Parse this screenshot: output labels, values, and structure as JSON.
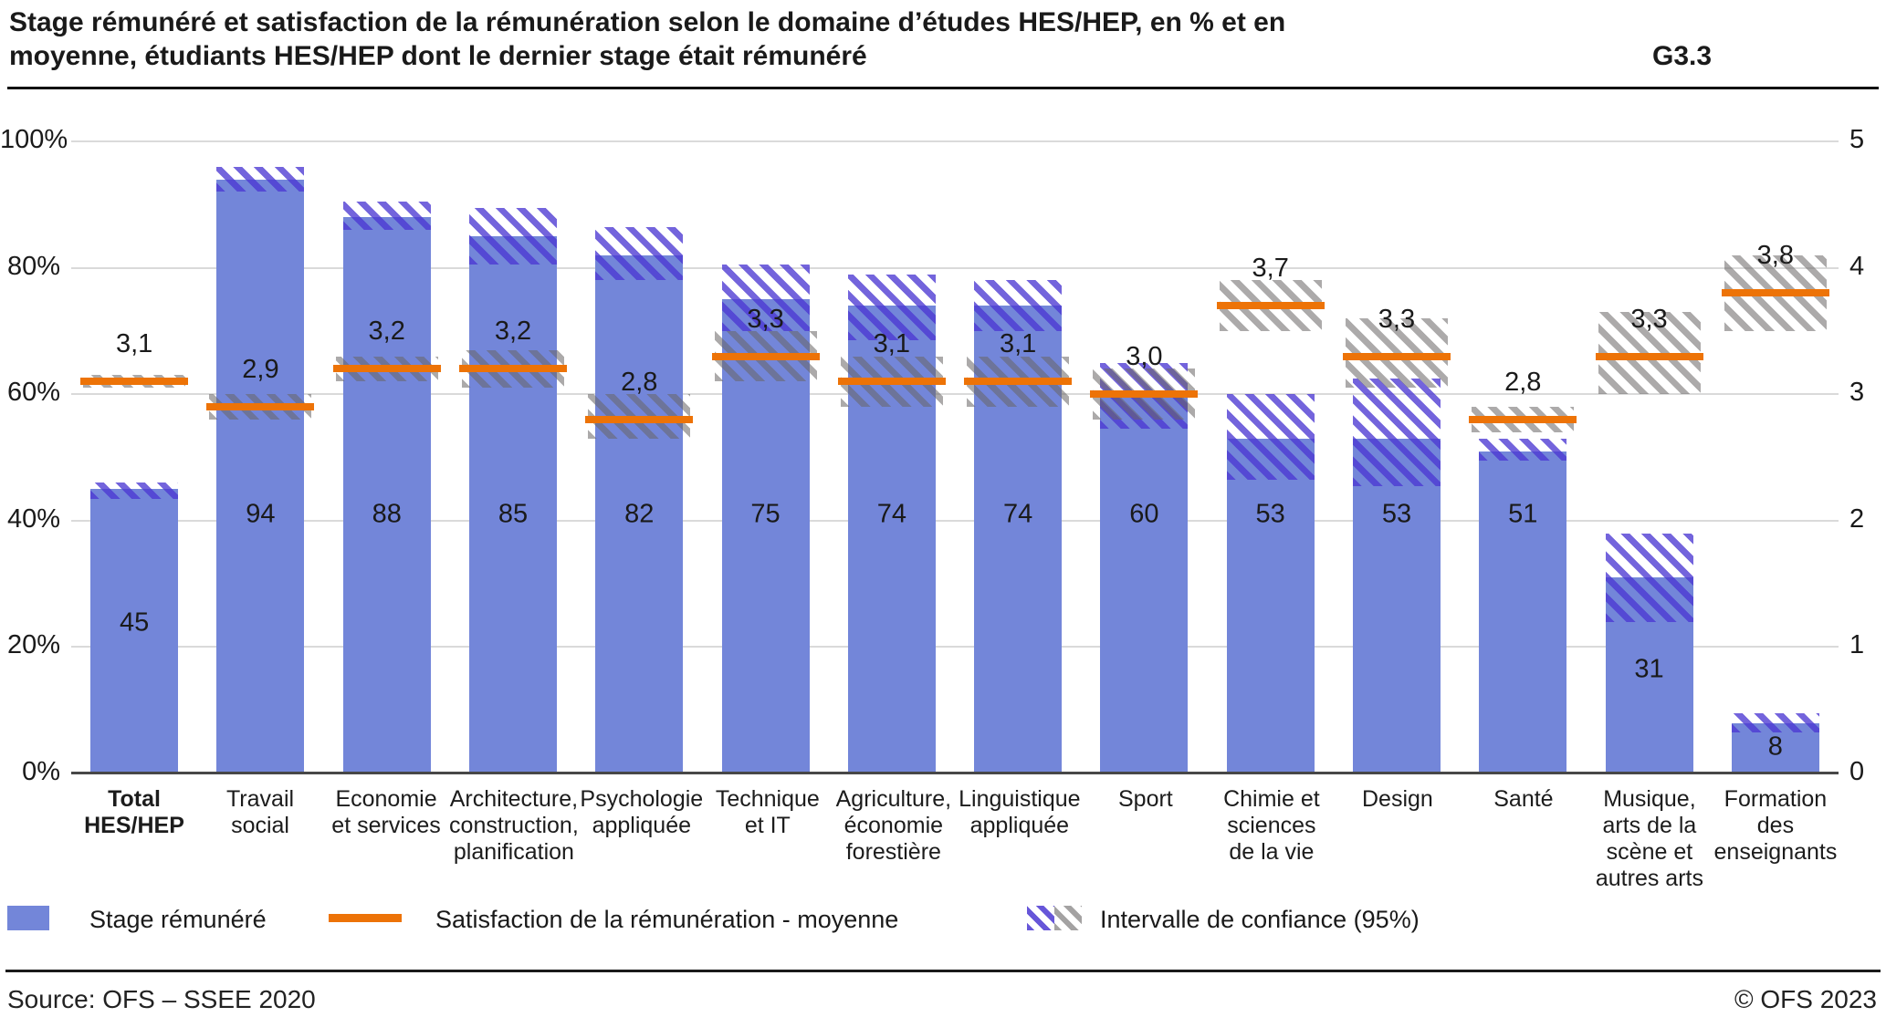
{
  "title": {
    "text": "Stage rémunéré et satisfaction de la rémunération selon le domaine d’études HES/HEP, en % et en\nmoyenne, étudiants HES/HEP dont le dernier stage était rémunéré",
    "code": "G3.3"
  },
  "chart_data": {
    "type": "bar",
    "title": "Stage rémunéré et satisfaction de la rémunération selon le domaine d’études HES/HEP, en % et en moyenne, étudiants HES/HEP dont le dernier stage était rémunéré",
    "categories": [
      "Total\nHES/HEP",
      "Travail\nsocial",
      "Economie\net services",
      "Architecture,\nconstruction,\nplanification",
      "Psychologie\nappliquée",
      "Technique\net IT",
      "Agriculture,\néconomie\nforestière",
      "Linguistique\nappliquée",
      "Sport",
      "Chimie et\nsciences\nde la vie",
      "Design",
      "Santé",
      "Musique,\narts de la\nscène et\nautres arts",
      "Formation\ndes\nenseignants"
    ],
    "bold_category_index": 0,
    "series": [
      {
        "name": "Stage rémunéré",
        "unit": "%",
        "axis": "left",
        "values": [
          45,
          94,
          88,
          85,
          82,
          75,
          74,
          74,
          60,
          53,
          53,
          51,
          31,
          8
        ],
        "ci_low": [
          43.5,
          92,
          86,
          80.5,
          78,
          70,
          68.5,
          70,
          54.5,
          46.5,
          45.5,
          49.5,
          24,
          6.5
        ],
        "ci_high": [
          46,
          96,
          90.5,
          89.5,
          86.5,
          80.5,
          79,
          78,
          65,
          60,
          62.5,
          53,
          38,
          9.5
        ]
      },
      {
        "name": "Satisfaction de la rémunération - moyenne",
        "unit": "moyenne (échelle 0–5)",
        "axis": "right",
        "values": [
          3.1,
          2.9,
          3.2,
          3.2,
          2.8,
          3.3,
          3.1,
          3.1,
          3.0,
          3.7,
          3.3,
          2.8,
          3.3,
          3.8
        ],
        "labels": [
          "3,1",
          "2,9",
          "3,2",
          "3,2",
          "2,8",
          "3,3",
          "3,1",
          "3,1",
          "3,0",
          "3,7",
          "3,3",
          "2,8",
          "3,3",
          "3,8"
        ],
        "ci_low": [
          3.05,
          2.8,
          3.1,
          3.05,
          2.65,
          3.1,
          2.9,
          2.9,
          2.8,
          3.5,
          3.05,
          2.7,
          3.0,
          3.5
        ],
        "ci_high": [
          3.15,
          3.0,
          3.3,
          3.35,
          3.0,
          3.5,
          3.3,
          3.3,
          3.2,
          3.9,
          3.6,
          2.9,
          3.65,
          4.1
        ]
      }
    ],
    "left_axis": {
      "label": "",
      "min": 0,
      "max": 100,
      "ticks": [
        "0%",
        "20%",
        "40%",
        "60%",
        "80%",
        "100%"
      ]
    },
    "right_axis": {
      "label": "",
      "min": 0,
      "max": 5,
      "ticks": [
        "0",
        "1",
        "2",
        "3",
        "4",
        "5"
      ]
    },
    "grid": true,
    "legend_position": "bottom",
    "ci_note": "Intervalle de confiance (95%)"
  },
  "legend": {
    "item1": "Stage rémunéré",
    "item2": "Satisfaction de la rémunération - moyenne",
    "item3": "Intervalle de confiance (95%)"
  },
  "footer": {
    "source": "Source: OFS – SSEE 2020",
    "copyright": "© OFS 2023"
  },
  "colors": {
    "bar": "#7386d9",
    "bar_ci_stripe": "#4c38d2",
    "satisfaction_line": "#ed7307",
    "sat_ci_stripe": "#8a8787",
    "gridline": "#dadada",
    "axis": "#474747",
    "text": "#1a1a1a"
  }
}
